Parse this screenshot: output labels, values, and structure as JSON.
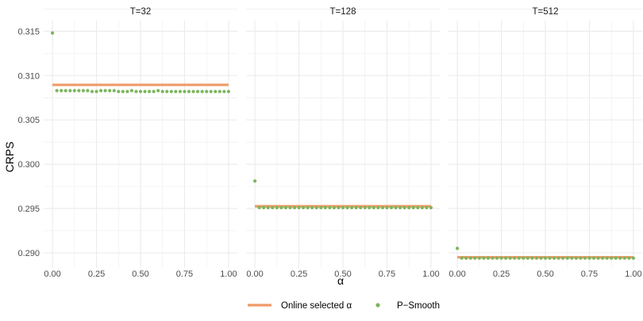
{
  "chart_data": {
    "type": "scatter",
    "ylabel": "CRPS",
    "xlabel": "α",
    "ylim": [
      0.2883,
      0.3162
    ],
    "xlim": [
      -0.05,
      1.05
    ],
    "y_ticks": [
      "0.290",
      "0.295",
      "0.300",
      "0.305",
      "0.310",
      "0.315"
    ],
    "x_ticks": [
      "0.00",
      "0.25",
      "0.50",
      "0.75",
      "1.00"
    ],
    "grid": true,
    "legend_position": "bottom",
    "colors": {
      "line": "#ee9a68",
      "points": "#7cb55c",
      "grid": "#ebebeb"
    },
    "series_labels": {
      "line": "Online selected α",
      "points": "P−Smooth"
    },
    "panels": [
      {
        "title": "T=32",
        "online_selected": 0.30895,
        "x": [
          0,
          0.025,
          0.05,
          0.075,
          0.1,
          0.125,
          0.15,
          0.175,
          0.2,
          0.225,
          0.25,
          0.275,
          0.3,
          0.325,
          0.35,
          0.375,
          0.4,
          0.425,
          0.45,
          0.475,
          0.5,
          0.525,
          0.55,
          0.575,
          0.6,
          0.625,
          0.65,
          0.675,
          0.7,
          0.725,
          0.75,
          0.775,
          0.8,
          0.825,
          0.85,
          0.875,
          0.9,
          0.925,
          0.95,
          0.975,
          1.0
        ],
        "y": [
          0.3148,
          0.3083,
          0.3083,
          0.3083,
          0.3083,
          0.3083,
          0.3083,
          0.3083,
          0.3083,
          0.3082,
          0.3082,
          0.3083,
          0.3083,
          0.3083,
          0.3083,
          0.3082,
          0.3082,
          0.3082,
          0.3083,
          0.3082,
          0.3082,
          0.3082,
          0.3082,
          0.3082,
          0.3083,
          0.3082,
          0.3082,
          0.3082,
          0.3082,
          0.3082,
          0.3082,
          0.3082,
          0.3082,
          0.3082,
          0.3082,
          0.3082,
          0.3082,
          0.3082,
          0.3082,
          0.3082,
          0.3082
        ]
      },
      {
        "title": "T=128",
        "online_selected": 0.29525,
        "x": [
          0,
          0.025,
          0.05,
          0.075,
          0.1,
          0.125,
          0.15,
          0.175,
          0.2,
          0.225,
          0.25,
          0.275,
          0.3,
          0.325,
          0.35,
          0.375,
          0.4,
          0.425,
          0.45,
          0.475,
          0.5,
          0.525,
          0.55,
          0.575,
          0.6,
          0.625,
          0.65,
          0.675,
          0.7,
          0.725,
          0.75,
          0.775,
          0.8,
          0.825,
          0.85,
          0.875,
          0.9,
          0.925,
          0.95,
          0.975,
          1.0
        ],
        "y": [
          0.2981,
          0.2951,
          0.2951,
          0.2951,
          0.2951,
          0.2951,
          0.2951,
          0.2951,
          0.2951,
          0.2951,
          0.2951,
          0.2951,
          0.2951,
          0.2951,
          0.2951,
          0.2951,
          0.2951,
          0.2951,
          0.2951,
          0.2951,
          0.2951,
          0.2951,
          0.2951,
          0.2951,
          0.2951,
          0.2951,
          0.2951,
          0.2951,
          0.2951,
          0.2951,
          0.2951,
          0.2951,
          0.2951,
          0.2951,
          0.2951,
          0.2951,
          0.2951,
          0.2951,
          0.2951,
          0.2951,
          0.2951
        ]
      },
      {
        "title": "T=512",
        "online_selected": 0.2895,
        "x": [
          0,
          0.025,
          0.05,
          0.075,
          0.1,
          0.125,
          0.15,
          0.175,
          0.2,
          0.225,
          0.25,
          0.275,
          0.3,
          0.325,
          0.35,
          0.375,
          0.4,
          0.425,
          0.45,
          0.475,
          0.5,
          0.525,
          0.55,
          0.575,
          0.6,
          0.625,
          0.65,
          0.675,
          0.7,
          0.725,
          0.75,
          0.775,
          0.8,
          0.825,
          0.85,
          0.875,
          0.9,
          0.925,
          0.95,
          0.975,
          1.0
        ],
        "y": [
          0.2905,
          0.2894,
          0.2894,
          0.2894,
          0.2894,
          0.2894,
          0.2894,
          0.2894,
          0.2894,
          0.2894,
          0.2894,
          0.2894,
          0.2894,
          0.2894,
          0.2894,
          0.2894,
          0.2894,
          0.2894,
          0.2894,
          0.2894,
          0.2894,
          0.2894,
          0.2894,
          0.2894,
          0.2894,
          0.2894,
          0.2894,
          0.2894,
          0.2894,
          0.2894,
          0.2894,
          0.2894,
          0.2894,
          0.2894,
          0.2894,
          0.2894,
          0.2894,
          0.2894,
          0.2894,
          0.2894,
          0.2894
        ]
      }
    ]
  }
}
